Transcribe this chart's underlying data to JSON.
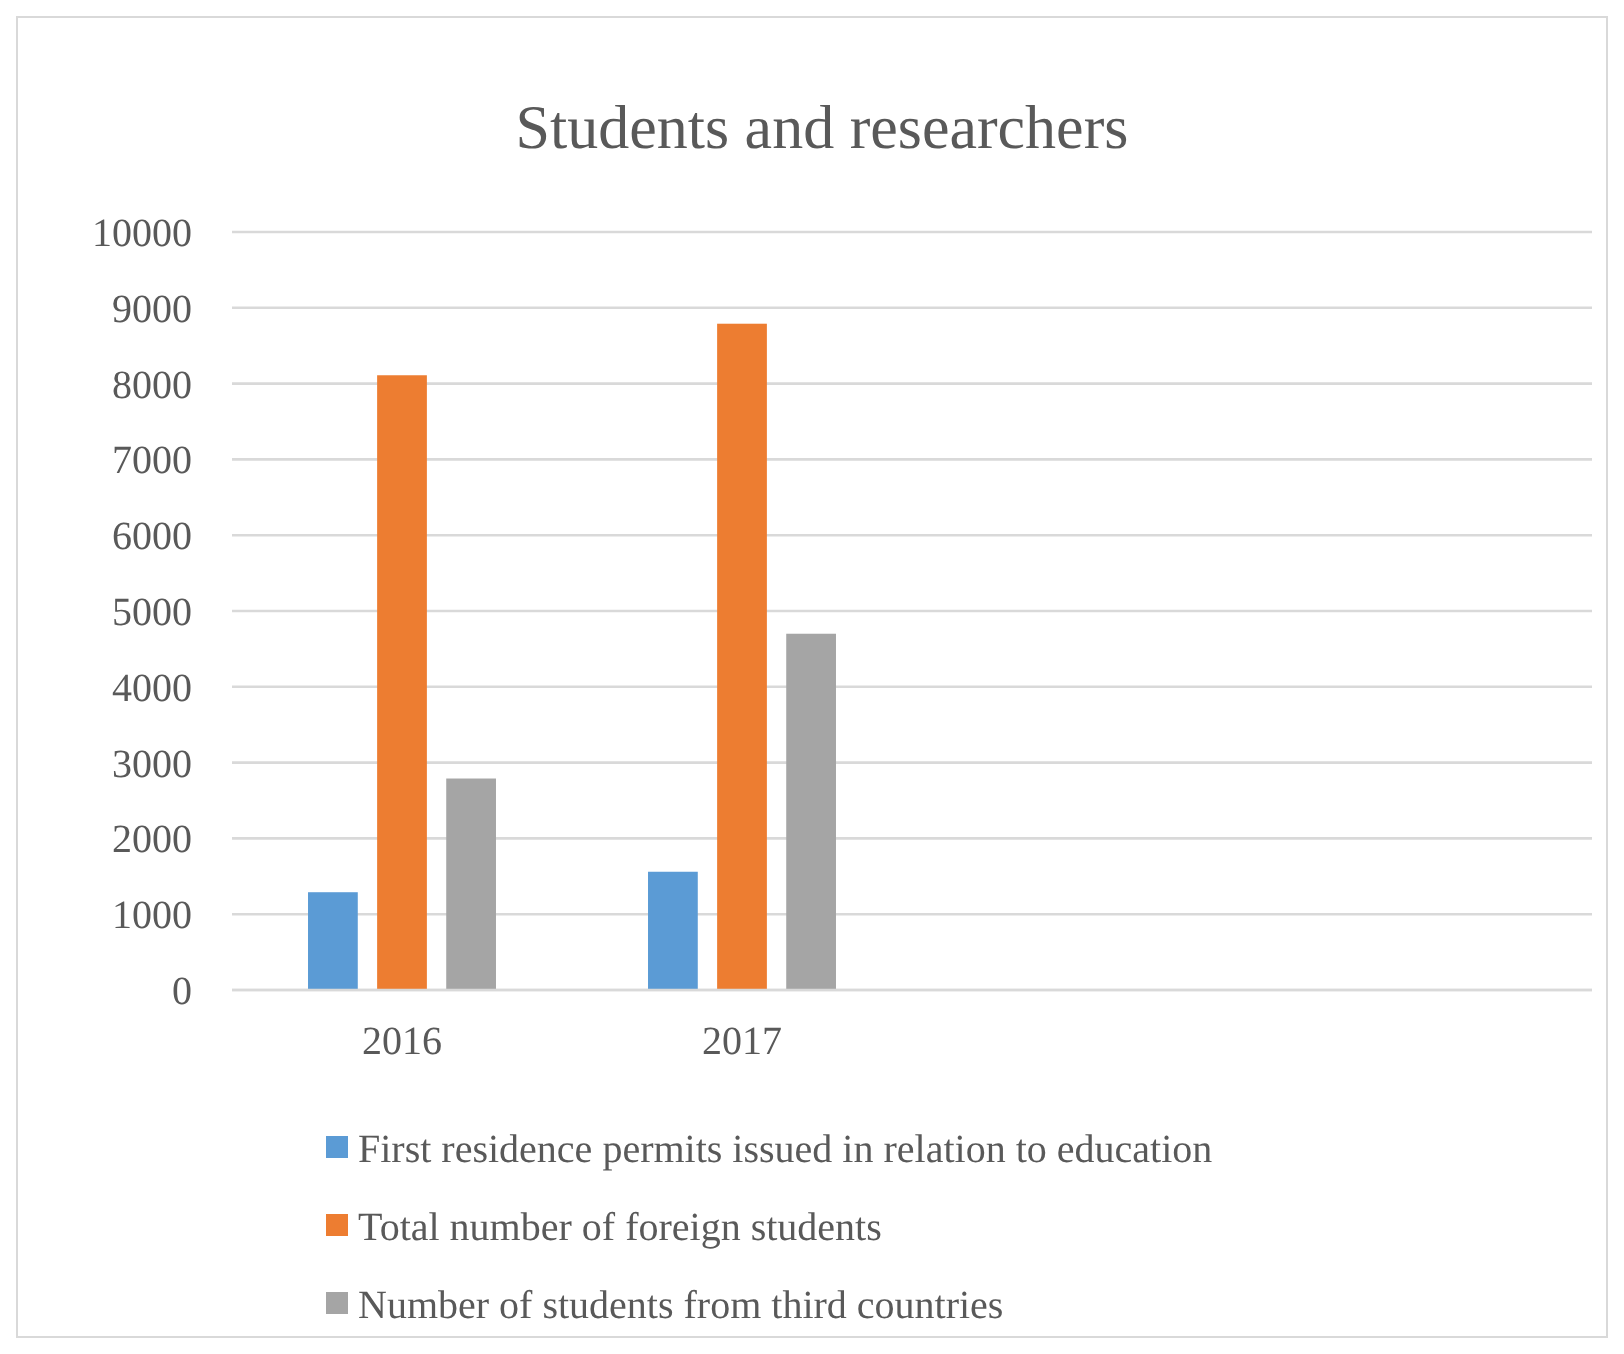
{
  "chart_data": {
    "type": "bar",
    "title": "Students and researchers",
    "categories": [
      "2016",
      "2017",
      null,
      null
    ],
    "series": [
      {
        "name": "First residence permits issued in relation to education",
        "color": "#5b9bd5",
        "values": [
          1290,
          1560,
          null,
          null
        ]
      },
      {
        "name": "Total number of foreign students",
        "color": "#ed7d31",
        "values": [
          8110,
          8790,
          null,
          null
        ]
      },
      {
        "name": "Number of students from third countries",
        "color": "#a5a5a5",
        "values": [
          2790,
          4700,
          null,
          null
        ]
      }
    ],
    "ylim": [
      0,
      10000
    ],
    "yticks": [
      0,
      1000,
      2000,
      3000,
      4000,
      5000,
      6000,
      7000,
      8000,
      9000,
      10000
    ],
    "grid": "y",
    "legend": "bottom"
  }
}
